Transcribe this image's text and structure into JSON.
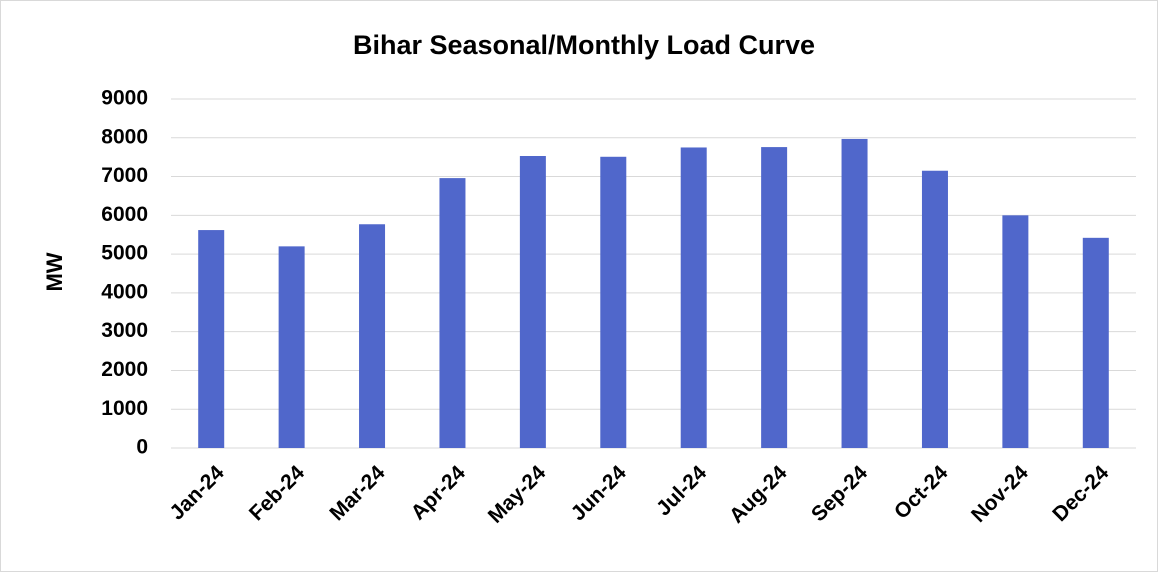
{
  "chart_data": {
    "type": "bar",
    "title": "Bihar Seasonal/Monthly Load Curve",
    "y_label": "MW",
    "categories": [
      "Jan-24",
      "Feb-24",
      "Mar-24",
      "Apr-24",
      "May-24",
      "Jun-24",
      "Jul-24",
      "Aug-24",
      "Sep-24",
      "Oct-24",
      "Nov-24",
      "Dec-24"
    ],
    "values": [
      5620,
      5200,
      5770,
      6960,
      7530,
      7510,
      7750,
      7760,
      7970,
      7150,
      6000,
      5420
    ],
    "color": "#5067cb",
    "ylim": [
      0,
      9000
    ],
    "yticks": [
      0,
      1000,
      2000,
      3000,
      4000,
      5000,
      6000,
      7000,
      8000,
      9000
    ],
    "grid": true
  }
}
